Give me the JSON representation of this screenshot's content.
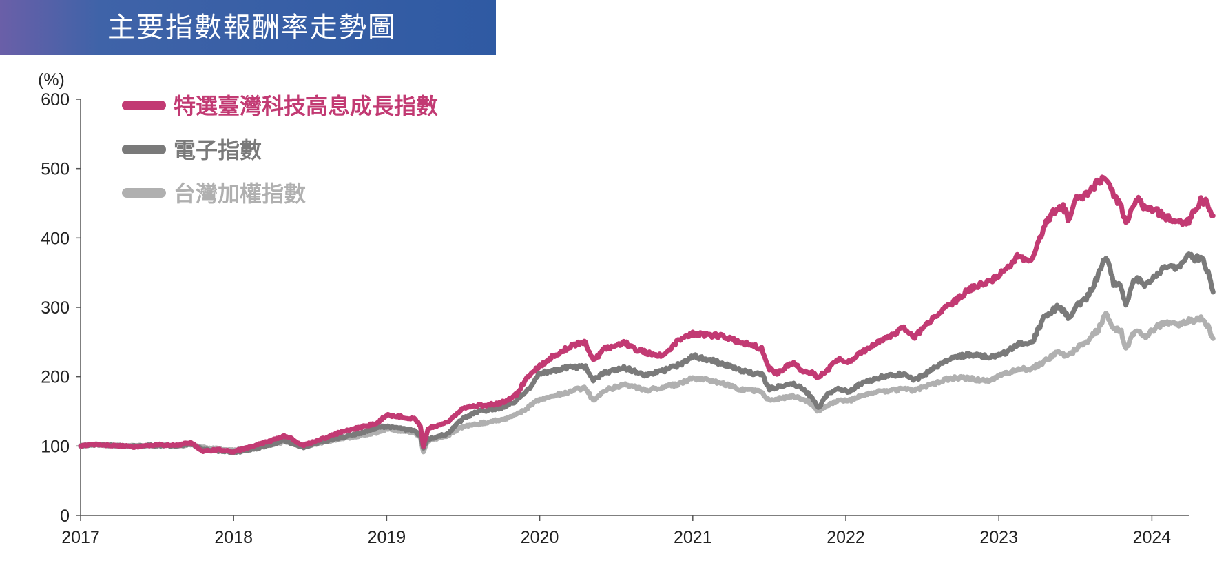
{
  "title": "主要指數報酬率走勢圖",
  "colors": {
    "banner": "#2f5aa3",
    "series1": "#c23a73",
    "series2": "#7a7a7a",
    "series3": "#b0b0b0"
  },
  "chart_data": {
    "type": "line",
    "title": "主要指數報酬率走勢圖",
    "yunit": "(%)",
    "ylim": [
      0,
      600
    ],
    "yticks": [
      0,
      100,
      200,
      300,
      400,
      500,
      600
    ],
    "xlim": [
      2017,
      2024.25
    ],
    "xticks": [
      2017,
      2018,
      2019,
      2020,
      2021,
      2022,
      2023,
      2024
    ],
    "grid": false,
    "legend_position": "top-left",
    "series": [
      {
        "name": "特選臺灣科技高息成長指數",
        "color": "#c23a73",
        "points": [
          [
            2017.0,
            100
          ],
          [
            2017.08,
            102
          ],
          [
            2017.2,
            101
          ],
          [
            2017.35,
            99
          ],
          [
            2017.5,
            102
          ],
          [
            2017.62,
            101
          ],
          [
            2017.72,
            105
          ],
          [
            2017.8,
            92
          ],
          [
            2017.9,
            95
          ],
          [
            2018.0,
            92
          ],
          [
            2018.1,
            98
          ],
          [
            2018.25,
            108
          ],
          [
            2018.33,
            115
          ],
          [
            2018.38,
            110
          ],
          [
            2018.45,
            101
          ],
          [
            2018.55,
            108
          ],
          [
            2018.7,
            120
          ],
          [
            2018.85,
            128
          ],
          [
            2018.95,
            135
          ],
          [
            2019.0,
            145
          ],
          [
            2019.1,
            142
          ],
          [
            2019.18,
            140
          ],
          [
            2019.22,
            130
          ],
          [
            2019.24,
            100
          ],
          [
            2019.27,
            125
          ],
          [
            2019.4,
            135
          ],
          [
            2019.5,
            155
          ],
          [
            2019.6,
            158
          ],
          [
            2019.75,
            162
          ],
          [
            2019.85,
            175
          ],
          [
            2019.92,
            200
          ],
          [
            2020.0,
            215
          ],
          [
            2020.08,
            228
          ],
          [
            2020.15,
            238
          ],
          [
            2020.25,
            248
          ],
          [
            2020.3,
            250
          ],
          [
            2020.35,
            222
          ],
          [
            2020.42,
            240
          ],
          [
            2020.5,
            245
          ],
          [
            2020.55,
            250
          ],
          [
            2020.62,
            240
          ],
          [
            2020.7,
            235
          ],
          [
            2020.8,
            230
          ],
          [
            2020.92,
            255
          ],
          [
            2021.0,
            262
          ],
          [
            2021.1,
            260
          ],
          [
            2021.2,
            258
          ],
          [
            2021.3,
            250
          ],
          [
            2021.4,
            245
          ],
          [
            2021.45,
            240
          ],
          [
            2021.5,
            212
          ],
          [
            2021.55,
            205
          ],
          [
            2021.65,
            220
          ],
          [
            2021.72,
            208
          ],
          [
            2021.78,
            205
          ],
          [
            2021.82,
            198
          ],
          [
            2021.88,
            210
          ],
          [
            2021.95,
            225
          ],
          [
            2022.02,
            222
          ],
          [
            2022.1,
            235
          ],
          [
            2022.2,
            248
          ],
          [
            2022.3,
            260
          ],
          [
            2022.38,
            270
          ],
          [
            2022.45,
            258
          ],
          [
            2022.55,
            280
          ],
          [
            2022.65,
            300
          ],
          [
            2022.72,
            310
          ],
          [
            2022.8,
            325
          ],
          [
            2022.88,
            333
          ],
          [
            2022.95,
            338
          ],
          [
            2023.05,
            355
          ],
          [
            2023.12,
            372
          ],
          [
            2023.22,
            368
          ],
          [
            2023.3,
            420
          ],
          [
            2023.38,
            445
          ],
          [
            2023.42,
            445
          ],
          [
            2023.46,
            425
          ],
          [
            2023.5,
            455
          ],
          [
            2023.58,
            465
          ],
          [
            2023.65,
            482
          ],
          [
            2023.7,
            486
          ],
          [
            2023.75,
            462
          ],
          [
            2023.8,
            445
          ],
          [
            2023.83,
            420
          ],
          [
            2023.88,
            450
          ],
          [
            2023.92,
            455
          ],
          [
            2023.96,
            440
          ],
          [
            2024.02,
            440
          ],
          [
            2024.1,
            430
          ],
          [
            2024.16,
            425
          ],
          [
            2024.2,
            420
          ],
          [
            2024.25,
            425
          ],
          [
            2024.28,
            440
          ],
          [
            2024.32,
            455
          ],
          [
            2024.36,
            450
          ],
          [
            2024.4,
            432
          ]
        ]
      },
      {
        "name": "電子指數",
        "color": "#7a7a7a",
        "points": [
          [
            2017.0,
            100
          ],
          [
            2017.08,
            102
          ],
          [
            2017.2,
            101
          ],
          [
            2017.35,
            100
          ],
          [
            2017.5,
            101
          ],
          [
            2017.62,
            100
          ],
          [
            2017.72,
            103
          ],
          [
            2017.8,
            95
          ],
          [
            2017.9,
            93
          ],
          [
            2018.0,
            91
          ],
          [
            2018.1,
            94
          ],
          [
            2018.25,
            102
          ],
          [
            2018.33,
            108
          ],
          [
            2018.38,
            104
          ],
          [
            2018.45,
            98
          ],
          [
            2018.55,
            104
          ],
          [
            2018.7,
            112
          ],
          [
            2018.85,
            120
          ],
          [
            2018.95,
            127
          ],
          [
            2019.0,
            128
          ],
          [
            2019.1,
            125
          ],
          [
            2019.18,
            122
          ],
          [
            2019.22,
            115
          ],
          [
            2019.24,
            98
          ],
          [
            2019.27,
            110
          ],
          [
            2019.4,
            118
          ],
          [
            2019.5,
            140
          ],
          [
            2019.6,
            150
          ],
          [
            2019.75,
            155
          ],
          [
            2019.85,
            165
          ],
          [
            2019.92,
            180
          ],
          [
            2020.0,
            205
          ],
          [
            2020.08,
            208
          ],
          [
            2020.15,
            212
          ],
          [
            2020.25,
            214
          ],
          [
            2020.3,
            215
          ],
          [
            2020.35,
            195
          ],
          [
            2020.42,
            205
          ],
          [
            2020.5,
            210
          ],
          [
            2020.55,
            213
          ],
          [
            2020.62,
            208
          ],
          [
            2020.7,
            202
          ],
          [
            2020.8,
            208
          ],
          [
            2020.92,
            218
          ],
          [
            2021.0,
            230
          ],
          [
            2021.1,
            225
          ],
          [
            2021.2,
            218
          ],
          [
            2021.3,
            210
          ],
          [
            2021.4,
            205
          ],
          [
            2021.45,
            205
          ],
          [
            2021.5,
            182
          ],
          [
            2021.55,
            185
          ],
          [
            2021.65,
            190
          ],
          [
            2021.72,
            182
          ],
          [
            2021.78,
            170
          ],
          [
            2021.82,
            155
          ],
          [
            2021.88,
            175
          ],
          [
            2021.95,
            182
          ],
          [
            2022.02,
            178
          ],
          [
            2022.1,
            190
          ],
          [
            2022.2,
            198
          ],
          [
            2022.3,
            202
          ],
          [
            2022.38,
            204
          ],
          [
            2022.45,
            195
          ],
          [
            2022.55,
            208
          ],
          [
            2022.65,
            222
          ],
          [
            2022.72,
            228
          ],
          [
            2022.8,
            232
          ],
          [
            2022.88,
            230
          ],
          [
            2022.95,
            228
          ],
          [
            2023.05,
            235
          ],
          [
            2023.12,
            246
          ],
          [
            2023.22,
            250
          ],
          [
            2023.3,
            288
          ],
          [
            2023.38,
            300
          ],
          [
            2023.42,
            295
          ],
          [
            2023.46,
            285
          ],
          [
            2023.5,
            300
          ],
          [
            2023.58,
            315
          ],
          [
            2023.65,
            345
          ],
          [
            2023.7,
            375
          ],
          [
            2023.75,
            335
          ],
          [
            2023.8,
            330
          ],
          [
            2023.83,
            300
          ],
          [
            2023.88,
            340
          ],
          [
            2023.92,
            340
          ],
          [
            2023.96,
            330
          ],
          [
            2024.02,
            345
          ],
          [
            2024.1,
            360
          ],
          [
            2024.16,
            355
          ],
          [
            2024.2,
            365
          ],
          [
            2024.25,
            375
          ],
          [
            2024.28,
            370
          ],
          [
            2024.32,
            372
          ],
          [
            2024.36,
            355
          ],
          [
            2024.4,
            322
          ]
        ]
      },
      {
        "name": "台灣加權指數",
        "color": "#b0b0b0",
        "points": [
          [
            2017.0,
            100
          ],
          [
            2017.08,
            102
          ],
          [
            2017.2,
            101
          ],
          [
            2017.35,
            100
          ],
          [
            2017.5,
            101
          ],
          [
            2017.62,
            100
          ],
          [
            2017.72,
            102
          ],
          [
            2017.8,
            98
          ],
          [
            2017.9,
            96
          ],
          [
            2018.0,
            94
          ],
          [
            2018.1,
            97
          ],
          [
            2018.25,
            102
          ],
          [
            2018.33,
            106
          ],
          [
            2018.38,
            104
          ],
          [
            2018.45,
            100
          ],
          [
            2018.55,
            104
          ],
          [
            2018.7,
            110
          ],
          [
            2018.85,
            116
          ],
          [
            2018.95,
            120
          ],
          [
            2019.0,
            124
          ],
          [
            2019.1,
            122
          ],
          [
            2019.18,
            120
          ],
          [
            2019.22,
            112
          ],
          [
            2019.24,
            92
          ],
          [
            2019.27,
            108
          ],
          [
            2019.4,
            115
          ],
          [
            2019.5,
            128
          ],
          [
            2019.6,
            132
          ],
          [
            2019.75,
            138
          ],
          [
            2019.85,
            145
          ],
          [
            2019.92,
            155
          ],
          [
            2020.0,
            168
          ],
          [
            2020.08,
            172
          ],
          [
            2020.15,
            176
          ],
          [
            2020.25,
            182
          ],
          [
            2020.3,
            184
          ],
          [
            2020.35,
            165
          ],
          [
            2020.42,
            180
          ],
          [
            2020.5,
            185
          ],
          [
            2020.55,
            188
          ],
          [
            2020.62,
            185
          ],
          [
            2020.7,
            180
          ],
          [
            2020.8,
            185
          ],
          [
            2020.92,
            190
          ],
          [
            2021.0,
            198
          ],
          [
            2021.1,
            195
          ],
          [
            2021.2,
            190
          ],
          [
            2021.3,
            182
          ],
          [
            2021.4,
            180
          ],
          [
            2021.45,
            178
          ],
          [
            2021.5,
            165
          ],
          [
            2021.55,
            168
          ],
          [
            2021.65,
            172
          ],
          [
            2021.72,
            168
          ],
          [
            2021.78,
            160
          ],
          [
            2021.82,
            150
          ],
          [
            2021.88,
            158
          ],
          [
            2021.95,
            165
          ],
          [
            2022.02,
            165
          ],
          [
            2022.1,
            172
          ],
          [
            2022.2,
            178
          ],
          [
            2022.3,
            180
          ],
          [
            2022.38,
            182
          ],
          [
            2022.45,
            180
          ],
          [
            2022.55,
            188
          ],
          [
            2022.65,
            196
          ],
          [
            2022.72,
            198
          ],
          [
            2022.8,
            198
          ],
          [
            2022.88,
            195
          ],
          [
            2022.95,
            195
          ],
          [
            2023.05,
            205
          ],
          [
            2023.12,
            210
          ],
          [
            2023.22,
            212
          ],
          [
            2023.3,
            222
          ],
          [
            2023.38,
            235
          ],
          [
            2023.42,
            232
          ],
          [
            2023.46,
            230
          ],
          [
            2023.5,
            240
          ],
          [
            2023.58,
            252
          ],
          [
            2023.65,
            268
          ],
          [
            2023.7,
            292
          ],
          [
            2023.75,
            270
          ],
          [
            2023.8,
            265
          ],
          [
            2023.83,
            240
          ],
          [
            2023.88,
            262
          ],
          [
            2023.92,
            265
          ],
          [
            2023.96,
            258
          ],
          [
            2024.02,
            270
          ],
          [
            2024.1,
            278
          ],
          [
            2024.16,
            275
          ],
          [
            2024.2,
            278
          ],
          [
            2024.25,
            282
          ],
          [
            2024.28,
            280
          ],
          [
            2024.32,
            285
          ],
          [
            2024.36,
            275
          ],
          [
            2024.4,
            255
          ]
        ]
      }
    ]
  }
}
